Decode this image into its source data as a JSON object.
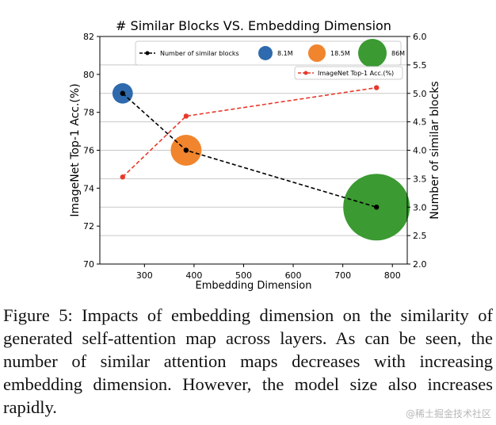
{
  "chart_data": {
    "type": "scatter",
    "title": "# Similar Blocks VS. Embedding Dimension",
    "xlabel": "Embedding Dimension",
    "ylabel_left": "ImageNet Top-1 Acc.(%)",
    "ylabel_right": "Number of similar blocks",
    "xlim": [
      210,
      830
    ],
    "ylim_left": [
      70,
      82
    ],
    "ylim_right": [
      2.0,
      6.0
    ],
    "x_ticks": [
      300,
      400,
      500,
      600,
      700,
      800
    ],
    "y_left_ticks": [
      70,
      72,
      74,
      76,
      78,
      80,
      82
    ],
    "y_right_ticks": [
      "2.0",
      "2.5",
      "3.0",
      "3.5",
      "4.0",
      "4.5",
      "5.0",
      "5.5",
      "6.0"
    ],
    "grid": true,
    "series": [
      {
        "name": "Number of similar blocks",
        "axis": "right",
        "color": "#000000",
        "style": "dashed",
        "x": [
          256,
          384,
          768
        ],
        "y": [
          5.0,
          4.0,
          3.0
        ]
      },
      {
        "name": "ImageNet Top-1 Acc.(%)",
        "axis": "right",
        "color": "#e8392b",
        "style": "dashed",
        "x": [
          256,
          384,
          768
        ],
        "y": [
          3.53,
          4.6,
          5.1
        ]
      }
    ],
    "bubbles": [
      {
        "x": 256,
        "y_left": 79,
        "label": "8.1M",
        "color": "#2e6aad",
        "params_m": 8.1
      },
      {
        "x": 384,
        "y_left": 76,
        "label": "18.5M",
        "color": "#f0852d",
        "params_m": 18.5
      },
      {
        "x": 768,
        "y_left": 73,
        "label": "86M",
        "color": "#3b9a32",
        "params_m": 86
      }
    ],
    "legend_placement": "top"
  },
  "caption": "Figure 5:  Impacts of embedding dimension on the similarity of generated self-attention map across layers.  As can be seen, the number of similar attention maps decreases with increasing embedding dimension.  However, the model size also increases rapidly.",
  "watermark": "@稀土掘金技术社区"
}
